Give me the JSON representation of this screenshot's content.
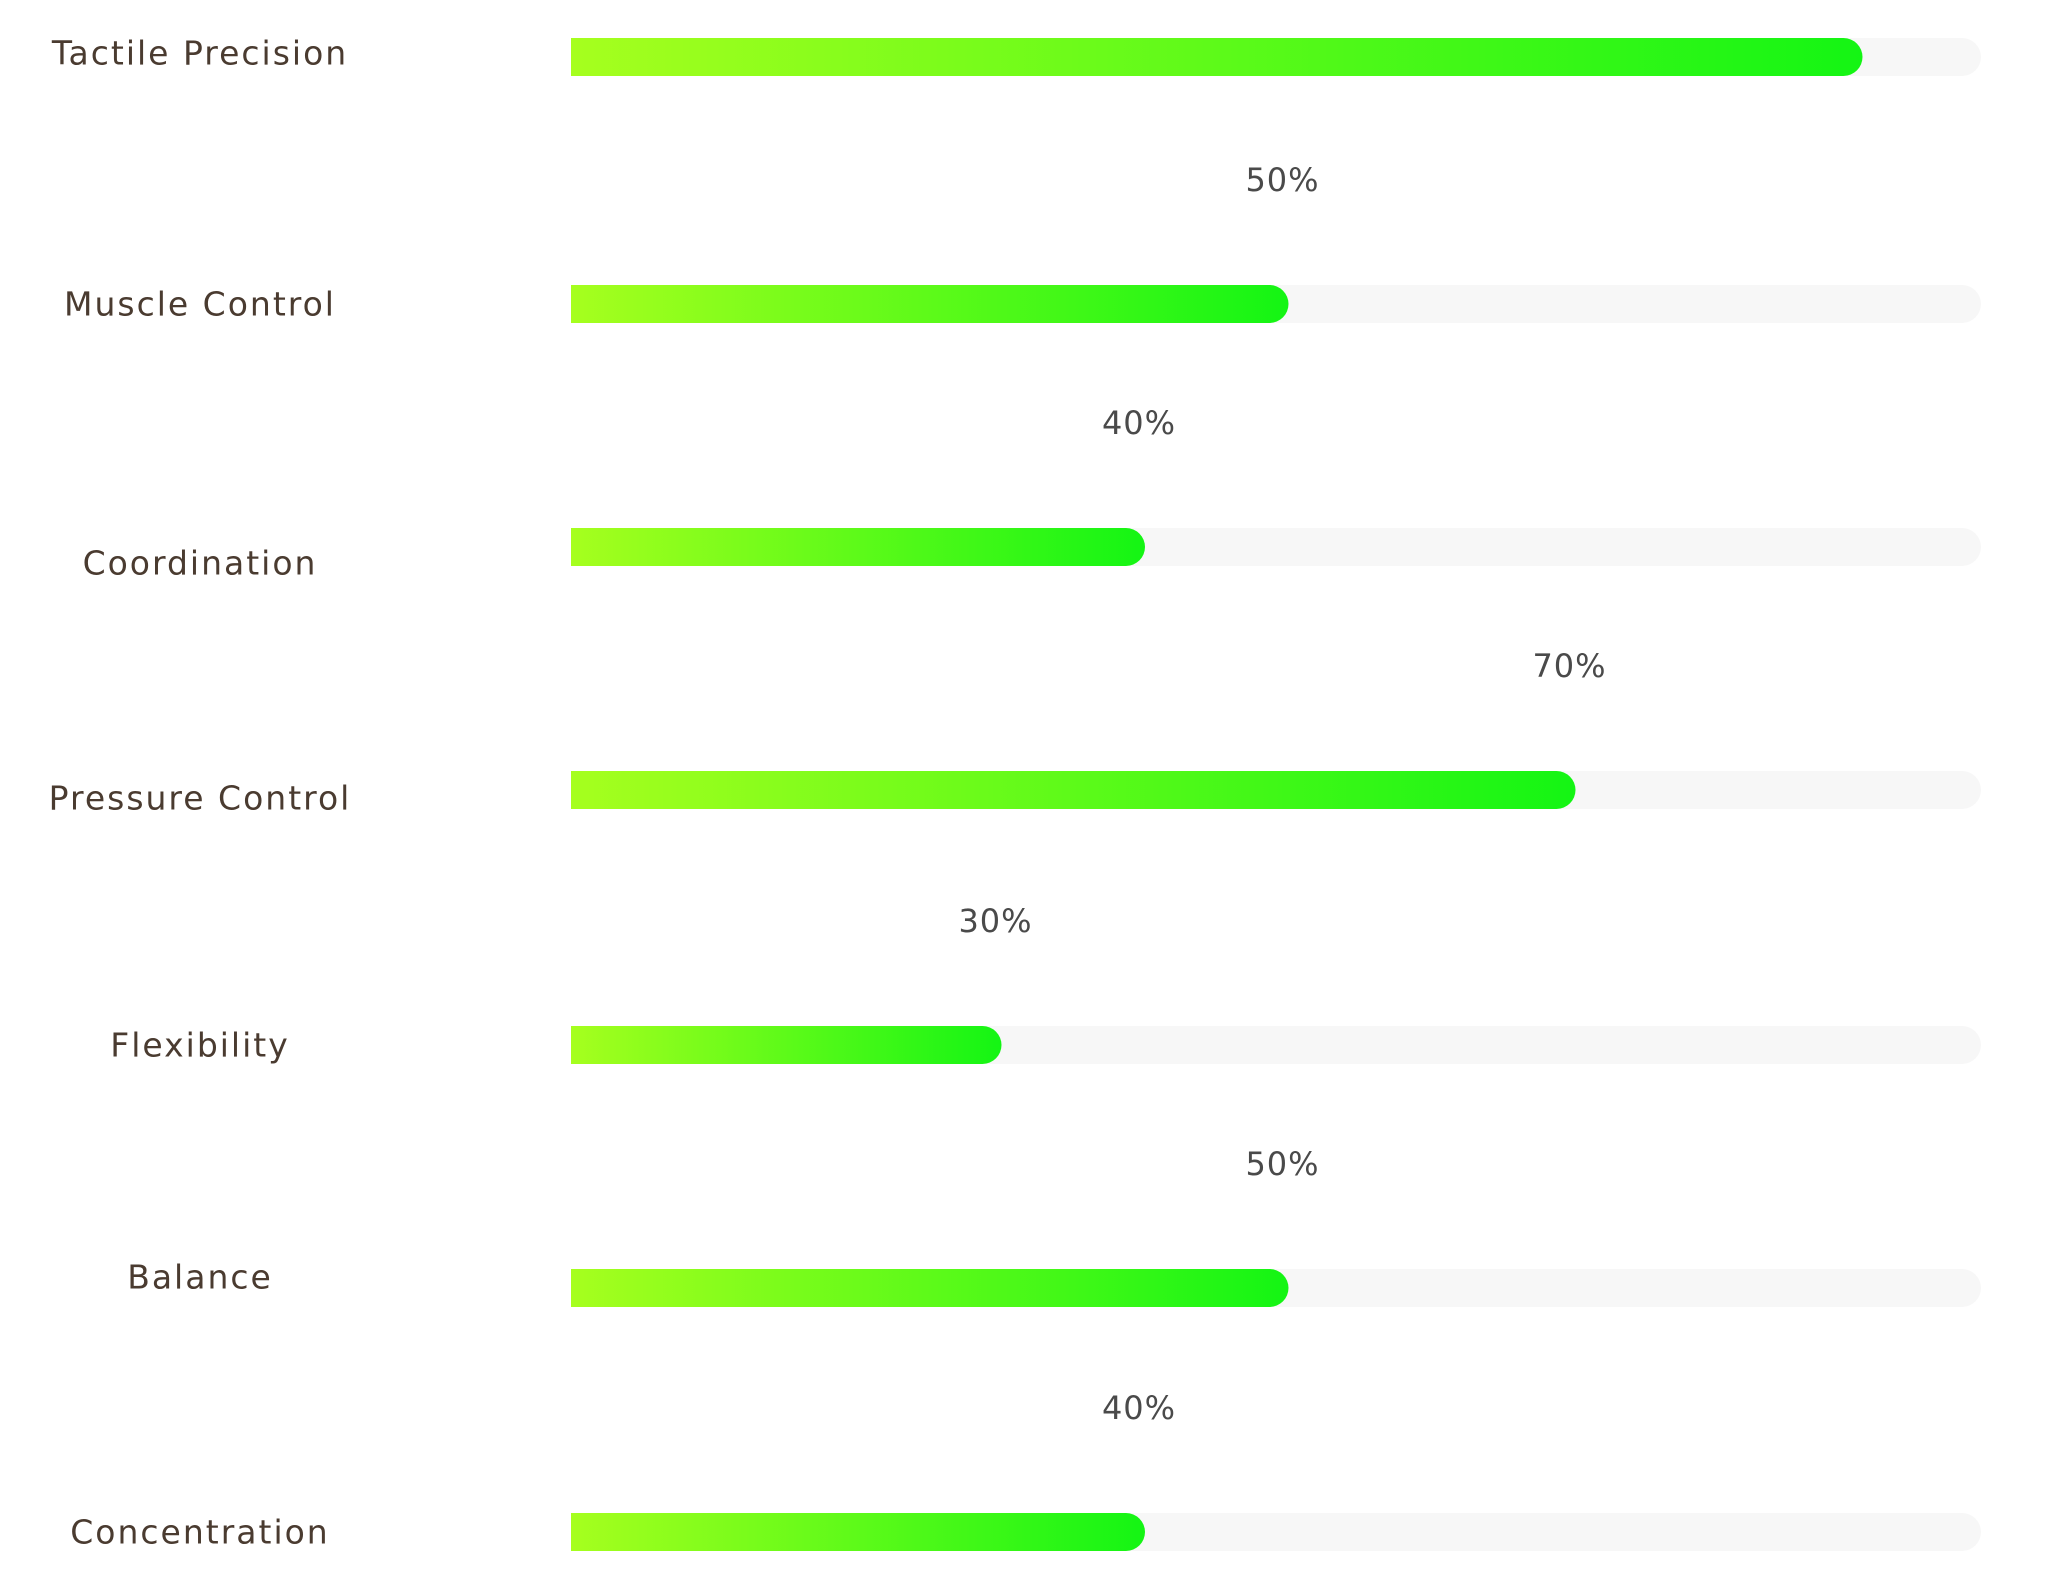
{
  "chart_data": {
    "type": "bar",
    "orientation": "horizontal",
    "categories": [
      "Tactile Precision",
      "Muscle Control",
      "Coordination",
      "Pressure Control",
      "Flexibility",
      "Balance",
      "Concentration"
    ],
    "values": [
      90,
      50,
      40,
      70,
      30,
      50,
      40
    ],
    "value_labels": [
      "",
      "50%",
      "40%",
      "70%",
      "30%",
      "50%",
      "40%"
    ],
    "xlim": [
      0,
      100
    ],
    "grid": false,
    "legend": "none",
    "colors": {
      "bar_start": "#a6ff1e",
      "bar_end": "#14f514",
      "track": "#f7f7f7",
      "label_text": "#4a3b30",
      "value_text": "#4a4a4a"
    }
  }
}
